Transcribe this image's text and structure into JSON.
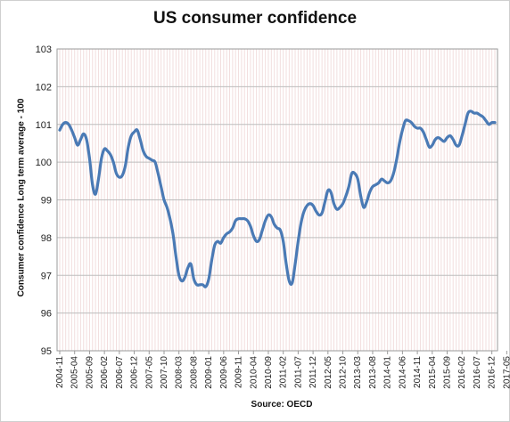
{
  "chart_data": {
    "type": "line",
    "title": "US consumer confidence",
    "ylabel": "Consumer confidence Long term average - 100",
    "source": "Source: OECD",
    "ylim": [
      95,
      103
    ],
    "yticks": [
      95,
      96,
      97,
      98,
      99,
      100,
      101,
      102,
      103
    ],
    "grid": true,
    "x_tick_labels": [
      "2004-11",
      "2005-04",
      "2005-09",
      "2006-02",
      "2006-07",
      "2006-12",
      "2007-05",
      "2007-10",
      "2008-03",
      "2008-08",
      "2009-01",
      "2009-06",
      "2009-11",
      "2010-04",
      "2010-09",
      "2011-02",
      "2011-07",
      "2011-12",
      "2012-05",
      "2012-10",
      "2013-03",
      "2013-08",
      "2014-01",
      "2014-06",
      "2014-11",
      "2015-04",
      "2015-09",
      "2016-02",
      "2016-07",
      "2016-12",
      "2017-05"
    ],
    "series": [
      {
        "name": "",
        "color": "#4a7ab5",
        "start": "2004-11",
        "frequency": "monthly",
        "values": [
          100.85,
          101.0,
          101.05,
          101.0,
          100.85,
          100.65,
          100.45,
          100.6,
          100.75,
          100.6,
          100.1,
          99.4,
          99.15,
          99.55,
          100.1,
          100.35,
          100.3,
          100.2,
          100.0,
          99.7,
          99.6,
          99.65,
          99.9,
          100.4,
          100.7,
          100.8,
          100.85,
          100.6,
          100.3,
          100.15,
          100.1,
          100.05,
          100.0,
          99.7,
          99.35,
          99.0,
          98.8,
          98.5,
          98.1,
          97.5,
          97.0,
          96.85,
          96.95,
          97.2,
          97.3,
          96.9,
          96.75,
          96.75,
          96.75,
          96.7,
          96.9,
          97.4,
          97.8,
          97.9,
          97.85,
          98.0,
          98.1,
          98.15,
          98.25,
          98.45,
          98.5,
          98.5,
          98.5,
          98.45,
          98.3,
          98.05,
          97.9,
          97.95,
          98.2,
          98.45,
          98.6,
          98.55,
          98.35,
          98.25,
          98.2,
          97.9,
          97.3,
          96.85,
          96.8,
          97.3,
          97.9,
          98.4,
          98.7,
          98.85,
          98.9,
          98.85,
          98.7,
          98.6,
          98.65,
          98.95,
          99.25,
          99.2,
          98.9,
          98.75,
          98.8,
          98.9,
          99.1,
          99.35,
          99.7,
          99.7,
          99.55,
          99.1,
          98.8,
          98.95,
          99.2,
          99.35,
          99.4,
          99.45,
          99.55,
          99.5,
          99.45,
          99.5,
          99.7,
          100.05,
          100.5,
          100.85,
          101.1,
          101.1,
          101.05,
          100.95,
          100.9,
          100.9,
          100.8,
          100.6,
          100.4,
          100.45,
          100.6,
          100.65,
          100.6,
          100.55,
          100.65,
          100.7,
          100.6,
          100.45,
          100.45,
          100.7,
          101.0,
          101.3,
          101.35,
          101.3,
          101.3,
          101.25,
          101.2,
          101.1,
          101.0,
          101.05,
          101.05
        ]
      }
    ]
  }
}
